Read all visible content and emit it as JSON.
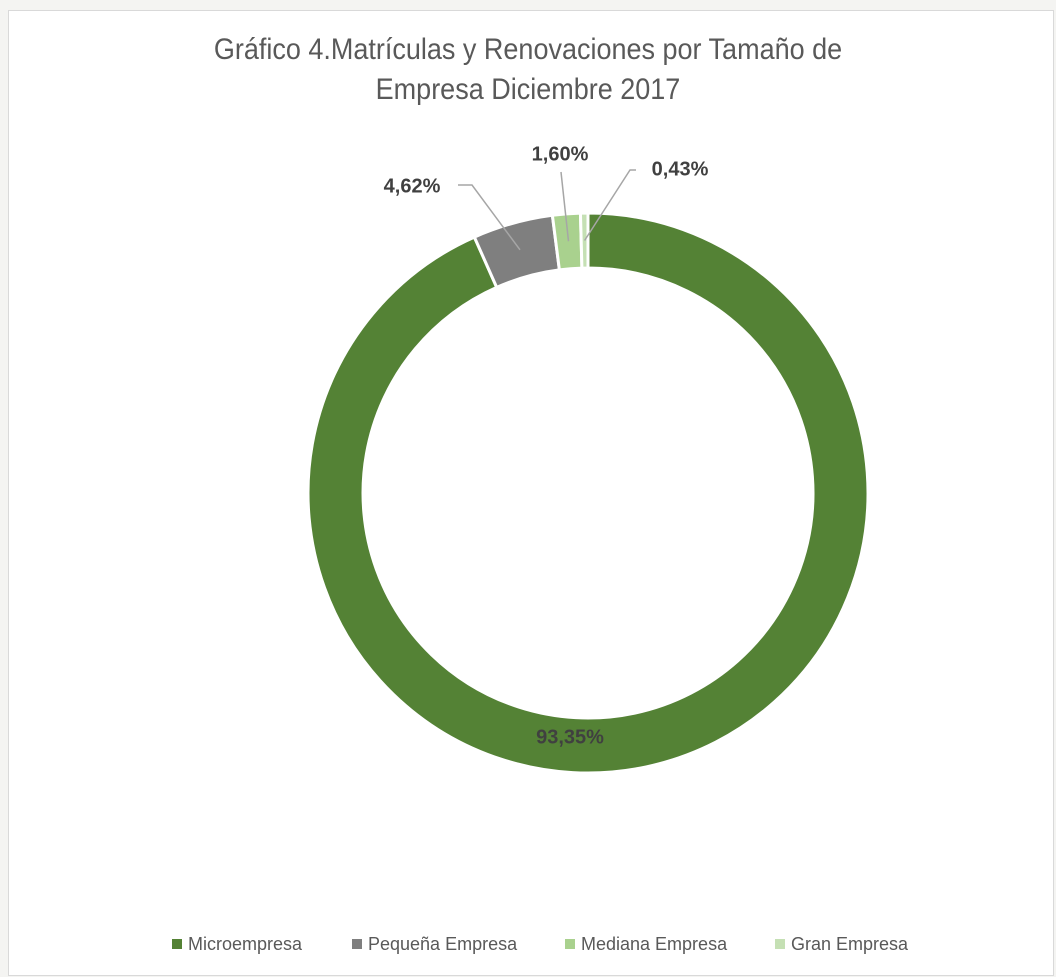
{
  "chart_data": {
    "type": "donut",
    "title": "Gráfico 4.Matrículas y Renovaciones por Tamaño de Empresa  Diciembre 2017",
    "categories": [
      "Microempresa",
      "Pequeña Empresa",
      "Mediana Empresa",
      "Gran Empresa"
    ],
    "values": [
      93.35,
      4.62,
      1.6,
      0.43
    ],
    "value_labels": [
      "93,35%",
      "4,62%",
      "1,60%",
      "0,43%"
    ],
    "colors": [
      "#548235",
      "#7f7f7f",
      "#a9d18e",
      "#c5e0b4"
    ],
    "legend": "bottom"
  }
}
